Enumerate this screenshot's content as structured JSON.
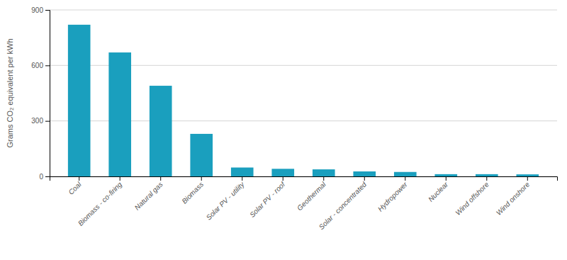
{
  "chart_data": {
    "type": "bar",
    "categories": [
      "Coal",
      "Biomass - co-firing",
      "Natural gas",
      "Biomass",
      "Solar PV - utility",
      "Solar PV - roof",
      "Geothermal",
      "Solar - concentrated",
      "Hydropower",
      "Nuclear",
      "Wind offshore",
      "Wind onshore"
    ],
    "values": [
      820,
      670,
      490,
      230,
      48,
      41,
      38,
      27,
      24,
      12,
      12,
      11
    ],
    "color": "#1a9fbe",
    "ylabel": "Grams CO₂ equivalent per kWh",
    "ylim": [
      0,
      900
    ],
    "yticks": [
      0,
      300,
      600,
      900
    ],
    "grid": true
  }
}
